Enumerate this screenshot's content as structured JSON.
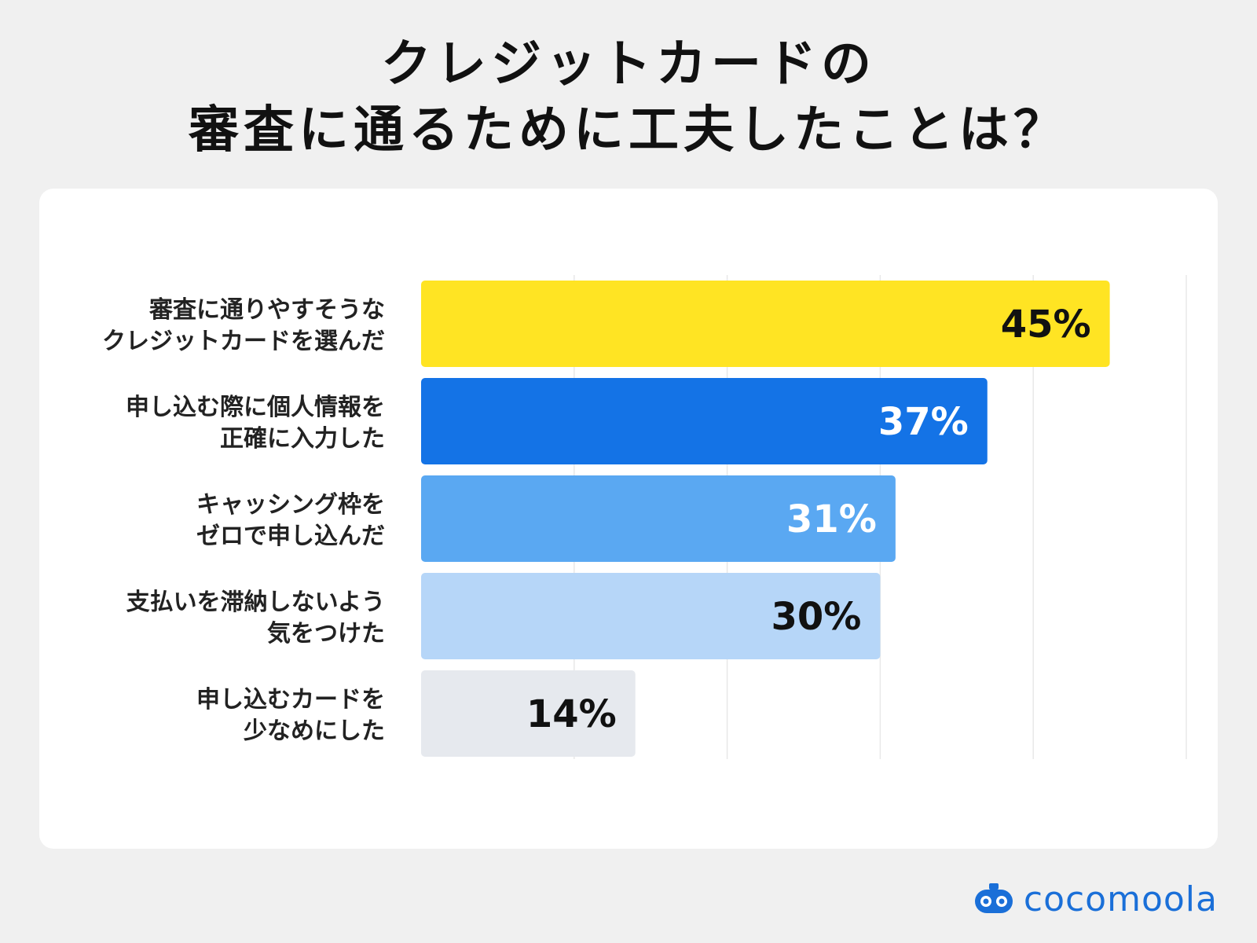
{
  "title": {
    "line1": "クレジットカードの",
    "line2": "審査に通るために工夫したことは？"
  },
  "brand": {
    "name": "cocomoola",
    "color": "#1a6fd8"
  },
  "chart_data": {
    "type": "bar",
    "orientation": "horizontal",
    "xlim": [
      0,
      50
    ],
    "grid": true,
    "categories": [
      [
        "審査に通りやすそうな",
        "クレジットカードを選んだ"
      ],
      [
        "申し込む際に個人情報を",
        "正確に入力した"
      ],
      [
        "キャッシング枠を",
        "ゼロで申し込んだ"
      ],
      [
        "支払いを滞納しないよう",
        "気をつけた"
      ],
      [
        "申し込むカードを",
        "少なめにした"
      ]
    ],
    "values": [
      45,
      37,
      31,
      30,
      14
    ],
    "value_labels": [
      "45%",
      "37%",
      "31%",
      "30%",
      "14%"
    ],
    "colors": [
      "#ffe423",
      "#1473e6",
      "#5aa8f2",
      "#b6d6f8",
      "#e6e9ee"
    ],
    "label_colors": [
      "#111111",
      "#ffffff",
      "#ffffff",
      "#111111",
      "#111111"
    ]
  }
}
